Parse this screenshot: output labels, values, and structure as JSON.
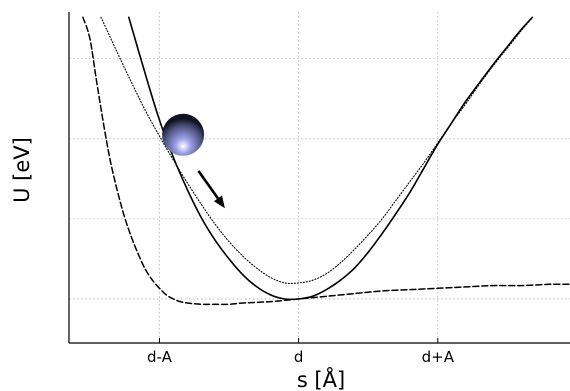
{
  "chart_data": {
    "type": "line",
    "xlabel": "s [Å]",
    "ylabel": "U [eV]",
    "xticks": [
      "d-A",
      "d",
      "d+A"
    ],
    "x_tick_values": [
      -1,
      0,
      1
    ],
    "grid": true,
    "xlim": [
      -1.65,
      1.95
    ],
    "ylim": [
      -0.33,
      2.15
    ],
    "series": [
      {
        "style": "solid",
        "color": "#000000",
        "x": [
          -1.22,
          -1.1,
          -1.0,
          -0.9,
          -0.8,
          -0.7,
          -0.6,
          -0.5,
          -0.4,
          -0.3,
          -0.2,
          -0.1,
          0,
          0.1,
          0.2,
          0.3,
          0.4,
          0.5,
          0.6,
          0.7,
          0.8,
          0.9,
          1.0,
          1.1,
          1.2,
          1.3,
          1.4,
          1.5,
          1.6,
          1.68
        ],
        "y": [
          2.11,
          1.68,
          1.34,
          1.06,
          0.82,
          0.61,
          0.44,
          0.3,
          0.18,
          0.09,
          0.03,
          0.0,
          0.0,
          0.02,
          0.07,
          0.14,
          0.23,
          0.35,
          0.49,
          0.64,
          0.8,
          0.98,
          1.16,
          1.32,
          1.48,
          1.62,
          1.76,
          1.89,
          2.02,
          2.11
        ]
      },
      {
        "style": "dotted",
        "color": "#000000",
        "x": [
          -1.42,
          -1.3,
          -1.2,
          -1.1,
          -1.0,
          -0.9,
          -0.8,
          -0.7,
          -0.6,
          -0.5,
          -0.4,
          -0.3,
          -0.2,
          -0.1,
          0,
          0.1,
          0.2,
          0.3,
          0.4,
          0.5,
          0.6,
          0.7,
          0.8,
          0.9,
          1.0,
          1.1,
          1.2,
          1.3,
          1.4,
          1.5,
          1.6,
          1.68
        ],
        "y": [
          2.11,
          1.84,
          1.62,
          1.41,
          1.22,
          1.04,
          0.87,
          0.71,
          0.56,
          0.43,
          0.32,
          0.23,
          0.16,
          0.12,
          0.12,
          0.14,
          0.19,
          0.27,
          0.37,
          0.48,
          0.6,
          0.74,
          0.88,
          1.02,
          1.17,
          1.32,
          1.46,
          1.61,
          1.75,
          1.88,
          2.01,
          2.11
        ]
      },
      {
        "style": "dashed",
        "color": "#000000",
        "x": [
          -1.55,
          -1.5,
          -1.45,
          -1.4,
          -1.35,
          -1.3,
          -1.25,
          -1.2,
          -1.15,
          -1.1,
          -1.05,
          -1.0,
          -0.95,
          -0.9,
          -0.85,
          -0.8,
          -0.7,
          -0.6,
          -0.5,
          -0.4,
          -0.2,
          0,
          0.2,
          0.4,
          0.6,
          0.8,
          1.0,
          1.2,
          1.4,
          1.6,
          1.8,
          1.95
        ],
        "y": [
          2.11,
          1.95,
          1.62,
          1.3,
          1.02,
          0.8,
          0.61,
          0.46,
          0.33,
          0.22,
          0.14,
          0.08,
          0.03,
          0.0,
          -0.02,
          -0.03,
          -0.04,
          -0.04,
          -0.04,
          -0.03,
          -0.02,
          0.0,
          0.02,
          0.04,
          0.06,
          0.07,
          0.08,
          0.09,
          0.1,
          0.1,
          0.11,
          0.11
        ]
      }
    ],
    "annotations": [
      {
        "kind": "ball",
        "color": "#7d83c8",
        "x": -0.83,
        "y": 1.23
      },
      {
        "kind": "arrow",
        "x": [
          -0.72,
          -0.53
        ],
        "y": [
          0.96,
          0.68
        ]
      }
    ]
  }
}
